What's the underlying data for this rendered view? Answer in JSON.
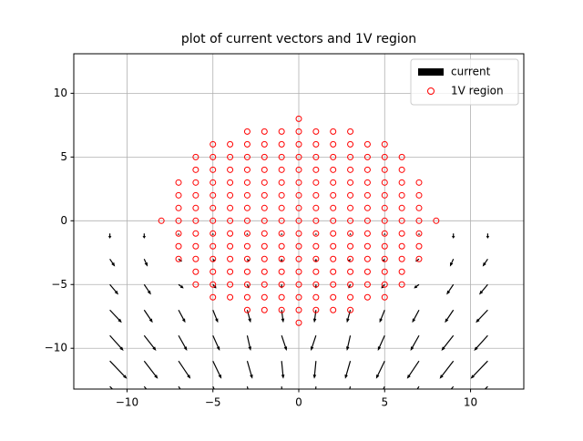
{
  "chart_data": {
    "type": "quiver",
    "title": "plot of current vectors and 1V region",
    "xlim": [
      -13.1,
      13.1
    ],
    "ylim": [
      -13.2,
      13.1
    ],
    "xticks": [
      {
        "value": -10,
        "label": "−10"
      },
      {
        "value": -5,
        "label": "−5"
      },
      0,
      5,
      10
    ],
    "yticks": [
      {
        "value": -10,
        "label": "−10"
      },
      {
        "value": -5,
        "label": "−5"
      },
      0,
      5,
      10
    ],
    "grid": true,
    "legend": "upper right",
    "series": [
      {
        "name": "current",
        "type": "quiver",
        "color": "#000000",
        "x": [
          -11,
          -9,
          -7,
          -5,
          -3,
          -1,
          1,
          3,
          5,
          7,
          9,
          11
        ],
        "rows": [
          {
            "y": -1,
            "u": [
              0,
              0,
              0,
              0,
              0,
              0,
              0,
              0,
              0,
              0,
              0,
              0
            ],
            "v": [
              -0.4,
              -0.4,
              -0.1,
              -0.1,
              -0.1,
              -0.1,
              -0.1,
              -0.1,
              -0.1,
              -0.1,
              -0.4,
              -0.4
            ]
          },
          {
            "y": -3,
            "u": [
              0.3,
              0.2,
              0.2,
              0.1,
              0.1,
              0,
              0,
              -0.1,
              -0.1,
              -0.2,
              -0.2,
              -0.3
            ],
            "v": [
              -0.6,
              -0.6,
              -0.2,
              -0.2,
              -0.2,
              -0.2,
              -0.2,
              -0.2,
              -0.2,
              -0.2,
              -0.6,
              -0.6
            ]
          },
          {
            "y": -5,
            "u": [
              0.5,
              0.4,
              0.3,
              0.2,
              0.1,
              0,
              0,
              -0.1,
              -0.2,
              -0.3,
              -0.4,
              -0.5
            ],
            "v": [
              -0.8,
              -0.8,
              -0.3,
              -0.3,
              -0.3,
              -0.3,
              -0.3,
              -0.3,
              -0.3,
              -0.3,
              -0.8,
              -0.8
            ]
          },
          {
            "y": -7,
            "u": [
              0.7,
              0.5,
              0.4,
              0.3,
              0.2,
              0.1,
              -0.1,
              -0.2,
              -0.3,
              -0.4,
              -0.5,
              -0.7
            ],
            "v": [
              -1.0,
              -1.0,
              -1.0,
              -1.0,
              -1.0,
              -1.0,
              -1.0,
              -1.0,
              -1.0,
              -1.0,
              -1.0,
              -1.0
            ]
          },
          {
            "y": -9,
            "u": [
              0.8,
              0.7,
              0.5,
              0.4,
              0.2,
              0.3,
              -0.3,
              -0.2,
              -0.4,
              -0.5,
              -0.7,
              -0.8
            ],
            "v": [
              -1.2,
              -1.2,
              -1.2,
              -1.2,
              -1.2,
              -1.2,
              -1.2,
              -1.2,
              -1.2,
              -1.2,
              -1.2,
              -1.2
            ]
          },
          {
            "y": -11,
            "u": [
              1.0,
              0.8,
              0.7,
              0.5,
              0.3,
              0.1,
              -0.1,
              -0.3,
              -0.5,
              -0.7,
              -0.8,
              -1.0
            ],
            "v": [
              -1.4,
              -1.4,
              -1.4,
              -1.4,
              -1.4,
              -1.4,
              -1.4,
              -1.4,
              -1.4,
              -1.4,
              -1.4,
              -1.4
            ]
          },
          {
            "y": -13,
            "u": [
              1.2,
              1.0,
              0.8,
              0.6,
              0.3,
              0.1,
              -0.1,
              -0.3,
              -0.6,
              -0.8,
              -1.0,
              -1.2
            ],
            "v": [
              -1.6,
              -1.6,
              -1.6,
              -1.6,
              -1.6,
              -1.6,
              -1.6,
              -1.6,
              -1.6,
              -1.6,
              -1.6,
              -1.6
            ]
          }
        ]
      },
      {
        "name": "1V region",
        "type": "scatter",
        "color": "#ff0000",
        "rows": [
          {
            "y": 8,
            "x": [
              0
            ]
          },
          {
            "y": 7,
            "x": [
              -3,
              -2,
              -1,
              0,
              1,
              2,
              3
            ]
          },
          {
            "y": 6,
            "x": [
              -5,
              -4,
              -3,
              -2,
              -1,
              0,
              1,
              2,
              3,
              4,
              5
            ]
          },
          {
            "y": 5,
            "x": [
              -6,
              -5,
              -4,
              -3,
              -2,
              -1,
              0,
              1,
              2,
              3,
              4,
              5,
              6
            ]
          },
          {
            "y": 4,
            "x": [
              -6,
              -5,
              -4,
              -3,
              -2,
              -1,
              0,
              1,
              2,
              3,
              4,
              5,
              6
            ]
          },
          {
            "y": 3,
            "x": [
              -7,
              -6,
              -5,
              -4,
              -3,
              -2,
              -1,
              0,
              1,
              2,
              3,
              4,
              5,
              6,
              7
            ]
          },
          {
            "y": 2,
            "x": [
              -7,
              -6,
              -5,
              -4,
              -3,
              -2,
              -1,
              0,
              1,
              2,
              3,
              4,
              5,
              6,
              7
            ]
          },
          {
            "y": 1,
            "x": [
              -7,
              -6,
              -5,
              -4,
              -3,
              -2,
              -1,
              0,
              1,
              2,
              3,
              4,
              5,
              6,
              7
            ]
          },
          {
            "y": 0,
            "x": [
              -8,
              -7,
              -6,
              -5,
              -4,
              -3,
              -2,
              -1,
              0,
              1,
              2,
              3,
              4,
              5,
              6,
              7,
              8
            ]
          },
          {
            "y": -1,
            "x": [
              -7,
              -6,
              -5,
              -4,
              -3,
              -2,
              -1,
              0,
              1,
              2,
              3,
              4,
              5,
              6,
              7
            ]
          },
          {
            "y": -2,
            "x": [
              -7,
              -6,
              -5,
              -4,
              -3,
              -2,
              -1,
              0,
              1,
              2,
              3,
              4,
              5,
              6,
              7
            ]
          },
          {
            "y": -3,
            "x": [
              -7,
              -6,
              -5,
              -4,
              -3,
              -2,
              -1,
              0,
              1,
              2,
              3,
              4,
              5,
              6,
              7
            ]
          },
          {
            "y": -4,
            "x": [
              -6,
              -5,
              -4,
              -3,
              -2,
              -1,
              0,
              1,
              2,
              3,
              4,
              5,
              6
            ]
          },
          {
            "y": -5,
            "x": [
              -6,
              -5,
              -4,
              -3,
              -2,
              -1,
              0,
              1,
              2,
              3,
              4,
              5,
              6
            ]
          },
          {
            "y": -6,
            "x": [
              -5,
              -4,
              -3,
              -2,
              -1,
              0,
              1,
              2,
              3,
              4,
              5
            ]
          },
          {
            "y": -7,
            "x": [
              -3,
              -2,
              -1,
              0,
              1,
              2,
              3
            ]
          },
          {
            "y": -8,
            "x": [
              0
            ]
          }
        ]
      }
    ]
  }
}
